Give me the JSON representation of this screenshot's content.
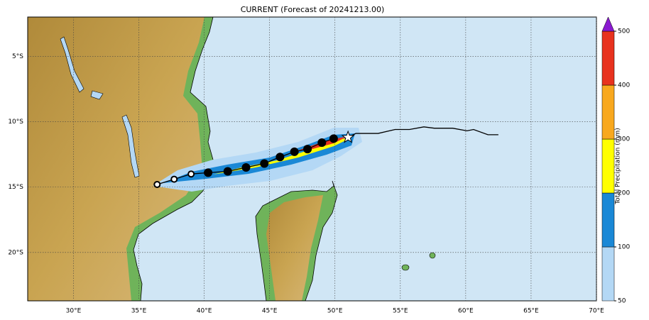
{
  "title": "CURRENT (Forecast of 20241213.00)",
  "map": {
    "xlim": [
      26.5,
      70
    ],
    "ylim": [
      -23.7,
      -2
    ],
    "xticks": [
      {
        "value": 30,
        "label": "30°E"
      },
      {
        "value": 35,
        "label": "35°E"
      },
      {
        "value": 40,
        "label": "40°E"
      },
      {
        "value": 45,
        "label": "45°E"
      },
      {
        "value": 50,
        "label": "50°E"
      },
      {
        "value": 55,
        "label": "55°E"
      },
      {
        "value": 60,
        "label": "60°E"
      },
      {
        "value": 65,
        "label": "65°E"
      },
      {
        "value": 70,
        "label": "70°E"
      }
    ],
    "yticks": [
      {
        "value": -5,
        "label": "5°S"
      },
      {
        "value": -10,
        "label": "10°S"
      },
      {
        "value": -15,
        "label": "15°S"
      },
      {
        "value": -20,
        "label": "20°S"
      }
    ],
    "forecast_track": {
      "lon": [
        36.4,
        37.7,
        39.0,
        40.3,
        41.8,
        43.2,
        44.6,
        45.8,
        46.9,
        47.9,
        49.0,
        49.9
      ],
      "lat": [
        -14.8,
        -14.4,
        -14.0,
        -13.9,
        -13.8,
        -13.5,
        -13.2,
        -12.7,
        -12.3,
        -12.1,
        -11.6,
        -11.3
      ]
    },
    "current_position": {
      "lon": 51.0,
      "lat": -11.2
    },
    "past_track": {
      "lon": [
        51.0,
        51.6,
        53.3,
        54.6,
        55.7,
        56.8,
        57.6,
        59.0,
        60.1,
        60.6,
        61.7,
        62.5
      ],
      "lat": [
        -11.2,
        -10.9,
        -10.9,
        -10.6,
        -10.6,
        -10.4,
        -10.5,
        -10.5,
        -10.7,
        -10.6,
        -11.0,
        -11.0
      ]
    }
  },
  "colorbar": {
    "label": "Total Precipitation (mm)",
    "ticks": [
      50,
      100,
      200,
      300,
      400,
      500
    ],
    "colors": [
      "#b4d8f5",
      "#1a88d6",
      "#ffff00",
      "#f8a81e",
      "#e8321e"
    ],
    "extend_color": "#8a1ad0"
  }
}
